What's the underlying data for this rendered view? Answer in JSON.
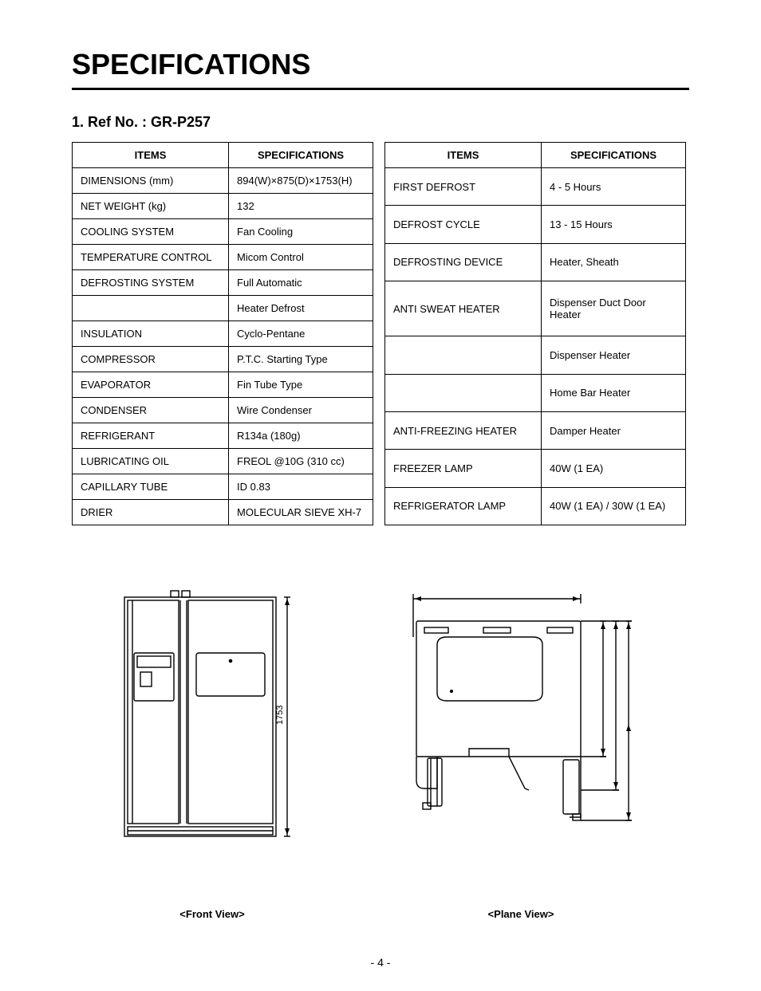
{
  "title": "SPECIFICATIONS",
  "refno": "1. Ref No. : GR-P257",
  "headers": {
    "items": "ITEMS",
    "specs": "SPECIFICATIONS"
  },
  "left_table": [
    {
      "item": "DIMENSIONS (mm)",
      "spec": "894(W)×875(D)×1753(H)"
    },
    {
      "item": "NET WEIGHT (kg)",
      "spec": "132"
    },
    {
      "item": "COOLING SYSTEM",
      "spec": "Fan Cooling"
    },
    {
      "item": "TEMPERATURE CONTROL",
      "spec": "Micom Control"
    },
    {
      "item": "DEFROSTING SYSTEM",
      "spec": "Full Automatic"
    },
    {
      "item": "",
      "spec": "Heater Defrost"
    },
    {
      "item": "INSULATION",
      "spec": "Cyclo-Pentane"
    },
    {
      "item": "COMPRESSOR",
      "spec": "P.T.C. Starting Type"
    },
    {
      "item": "EVAPORATOR",
      "spec": "Fin Tube Type"
    },
    {
      "item": "CONDENSER",
      "spec": "Wire Condenser"
    },
    {
      "item": "REFRIGERANT",
      "spec": "R134a (180g)"
    },
    {
      "item": "LUBRICATING OIL",
      "spec": "FREOL @10G (310 cc)"
    },
    {
      "item": "CAPILLARY TUBE",
      "spec": "ID 0.83"
    },
    {
      "item": "DRIER",
      "spec": "MOLECULAR SIEVE XH-7"
    }
  ],
  "right_table": [
    {
      "item": "FIRST DEFROST",
      "spec": "4 - 5 Hours"
    },
    {
      "item": "DEFROST CYCLE",
      "spec": "13 - 15 Hours"
    },
    {
      "item": "DEFROSTING DEVICE",
      "spec": "Heater, Sheath"
    },
    {
      "item": "ANTI SWEAT HEATER",
      "spec": "Dispenser Duct Door Heater"
    },
    {
      "item": "",
      "spec": "Dispenser Heater"
    },
    {
      "item": "",
      "spec": "Home Bar Heater"
    },
    {
      "item": "ANTI-FREEZING HEATER",
      "spec": "Damper Heater"
    },
    {
      "item": "FREEZER LAMP",
      "spec": "40W (1 EA)"
    },
    {
      "item": "REFRIGERATOR LAMP",
      "spec": "40W (1 EA) / 30W (1 EA)"
    }
  ],
  "diagram": {
    "front_label": "<Front View>",
    "plane_label": "<Plane View>",
    "height_dim": "1753",
    "stroke": "#000000",
    "stroke_width": 1.4,
    "fill": "none"
  },
  "page_number": "- 4 -"
}
